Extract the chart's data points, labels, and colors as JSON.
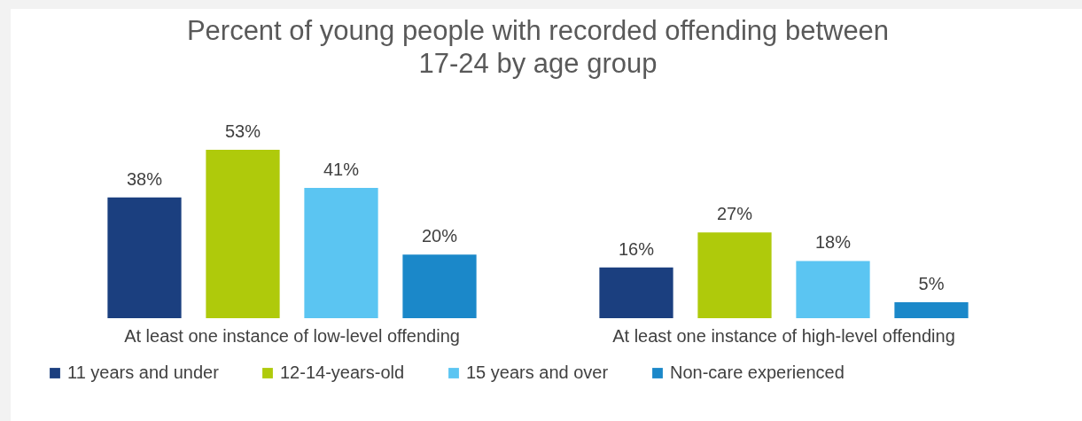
{
  "chart_data": {
    "type": "bar",
    "title": [
      "Percent of young people with recorded offending between",
      "17-24 by age group"
    ],
    "categories": [
      "At least one instance of low-level offending",
      "At least one instance of high-level offending"
    ],
    "series": [
      {
        "name": "11 years and under",
        "color": "#1b3f7f",
        "values": [
          38,
          16
        ],
        "value_labels": [
          "38%",
          "16%"
        ]
      },
      {
        "name": "12-14-years-old",
        "color": "#afca0b",
        "values": [
          53,
          27
        ],
        "value_labels": [
          "53%",
          "27%"
        ]
      },
      {
        "name": "15 years and over",
        "color": "#5bc5f2",
        "values": [
          41,
          18
        ],
        "value_labels": [
          "41%",
          "18%"
        ]
      },
      {
        "name": "Non-care experienced",
        "color": "#1b88c9",
        "values": [
          20,
          5
        ],
        "value_labels": [
          "20%",
          "5%"
        ]
      }
    ],
    "legend": "bottom",
    "grid": false
  }
}
